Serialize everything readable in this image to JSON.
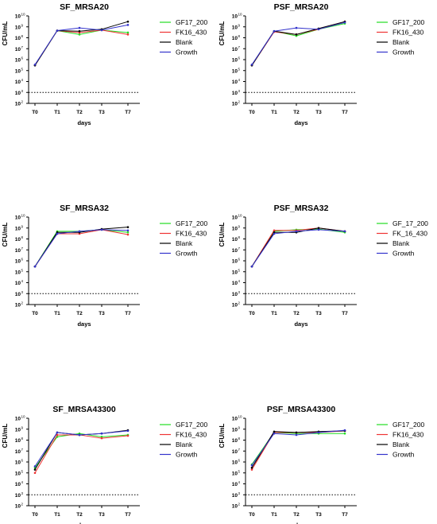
{
  "chart_data": [
    {
      "type": "line",
      "title": "SF_MRSA20",
      "ylabel": "CFU/mL",
      "xlabel": "days",
      "categories": [
        "T0",
        "T1",
        "T2",
        "T3",
        "T7"
      ],
      "y_scale": "log",
      "ylim": [
        100,
        10000000000
      ],
      "yticks": [
        "10",
        "10",
        "10",
        "10",
        "10",
        "10",
        "10",
        "10",
        "10"
      ],
      "ytick_exponents": [
        "2",
        "3",
        "4",
        "5",
        "6",
        "7",
        "8",
        "9",
        "10"
      ],
      "reference_line": 1000,
      "legend_position": "right",
      "series": [
        {
          "name": "GF17_200",
          "color": "#22dd22",
          "values": [
            300000,
            450000000,
            200000000,
            500000000,
            300000000
          ]
        },
        {
          "name": "FK16_430",
          "color": "#ee3333",
          "values": [
            300000,
            450000000,
            300000000,
            500000000,
            200000000
          ]
        },
        {
          "name": "Blank",
          "color": "#000000",
          "values": [
            300000,
            450000000,
            400000000,
            600000000,
            3000000000
          ]
        },
        {
          "name": "Growth",
          "color": "#3333cc",
          "values": [
            350000,
            450000000,
            800000000,
            500000000,
            1500000000
          ]
        }
      ]
    },
    {
      "type": "line",
      "title": "PSF_MRSA20",
      "ylabel": "CFU/mL",
      "xlabel": "days",
      "categories": [
        "T0",
        "T1",
        "T2",
        "T3",
        "T7"
      ],
      "y_scale": "log",
      "ylim": [
        100,
        10000000000
      ],
      "yticks": [
        "10",
        "10",
        "10",
        "10",
        "10",
        "10",
        "10",
        "10",
        "10"
      ],
      "ytick_exponents": [
        "2",
        "3",
        "4",
        "5",
        "6",
        "7",
        "8",
        "9",
        "10"
      ],
      "reference_line": 1000,
      "legend_position": "right",
      "series": [
        {
          "name": "GF17_200",
          "color": "#22dd22",
          "values": [
            300000,
            400000000,
            150000000,
            600000000,
            2000000000
          ]
        },
        {
          "name": "FK16_430",
          "color": "#ee3333",
          "values": [
            300000,
            350000000,
            200000000,
            600000000,
            3000000000
          ]
        },
        {
          "name": "Blank",
          "color": "#000000",
          "values": [
            300000,
            400000000,
            200000000,
            700000000,
            3000000000
          ]
        },
        {
          "name": "Growth",
          "color": "#3333cc",
          "values": [
            350000,
            400000000,
            800000000,
            600000000,
            2500000000
          ]
        }
      ]
    },
    {
      "type": "line",
      "title": "SF_MRSA32",
      "ylabel": "CFU/mL",
      "xlabel": "days",
      "categories": [
        "T0",
        "T1",
        "T2",
        "T3",
        "T7"
      ],
      "y_scale": "log",
      "ylim": [
        100,
        10000000000
      ],
      "yticks": [
        "10",
        "10",
        "10",
        "10",
        "10",
        "10",
        "10",
        "10",
        "10"
      ],
      "ytick_exponents": [
        "2",
        "3",
        "4",
        "5",
        "6",
        "7",
        "8",
        "9",
        "10"
      ],
      "reference_line": 1000,
      "legend_position": "right",
      "series": [
        {
          "name": "GF17_200",
          "color": "#22dd22",
          "values": [
            300000,
            500000000,
            500000000,
            700000000,
            400000000
          ]
        },
        {
          "name": "FK16_430",
          "color": "#ee3333",
          "values": [
            300000,
            300000000,
            300000000,
            700000000,
            250000000
          ]
        },
        {
          "name": "Blank",
          "color": "#000000",
          "values": [
            300000,
            400000000,
            400000000,
            800000000,
            1200000000
          ]
        },
        {
          "name": "Growth",
          "color": "#3333cc",
          "values": [
            300000,
            300000000,
            500000000,
            700000000,
            600000000
          ]
        }
      ]
    },
    {
      "type": "line",
      "title": "PSF_MRSA32",
      "ylabel": "CFU/mL",
      "xlabel": "days",
      "categories": [
        "T0",
        "T1",
        "T2",
        "T3",
        "T7"
      ],
      "y_scale": "log",
      "ylim": [
        100,
        10000000000
      ],
      "yticks": [
        "10",
        "10",
        "10",
        "10",
        "10",
        "10",
        "10",
        "10",
        "10"
      ],
      "ytick_exponents": [
        "2",
        "3",
        "4",
        "5",
        "6",
        "7",
        "8",
        "9",
        "10"
      ],
      "reference_line": 1000,
      "legend_position": "right",
      "series": [
        {
          "name": "GF_17_200",
          "color": "#22dd22",
          "values": [
            300000,
            500000000,
            700000000,
            800000000,
            400000000
          ]
        },
        {
          "name": "FK_16_430",
          "color": "#ee3333",
          "values": [
            300000,
            600000000,
            600000000,
            1000000000,
            500000000
          ]
        },
        {
          "name": "Blank",
          "color": "#000000",
          "values": [
            300000,
            400000000,
            400000000,
            1000000000,
            500000000
          ]
        },
        {
          "name": "Growth",
          "color": "#3333cc",
          "values": [
            300000,
            300000000,
            500000000,
            700000000,
            500000000
          ]
        }
      ]
    },
    {
      "type": "line",
      "title": "SF_MRSA43300",
      "ylabel": "CFU/mL",
      "xlabel": "days",
      "categories": [
        "T0",
        "T1",
        "T2",
        "T3",
        "T7"
      ],
      "y_scale": "log",
      "ylim": [
        100,
        10000000000
      ],
      "yticks": [
        "10",
        "10",
        "10",
        "10",
        "10",
        "10",
        "10",
        "10",
        "10"
      ],
      "ytick_exponents": [
        "2",
        "3",
        "4",
        "5",
        "6",
        "7",
        "8",
        "9",
        "10"
      ],
      "reference_line": 1000,
      "legend_position": "right",
      "series": [
        {
          "name": "GF17_200",
          "color": "#22dd22",
          "values": [
            300000,
            200000000,
            400000000,
            200000000,
            300000000
          ]
        },
        {
          "name": "FK16_430",
          "color": "#ee3333",
          "values": [
            100000,
            300000000,
            300000000,
            150000000,
            250000000
          ]
        },
        {
          "name": "Blank",
          "color": "#000000",
          "values": [
            200000,
            500000000,
            300000000,
            400000000,
            800000000
          ]
        },
        {
          "name": "Growth",
          "color": "#3333cc",
          "values": [
            400000,
            500000000,
            300000000,
            400000000,
            700000000
          ]
        }
      ]
    },
    {
      "type": "line",
      "title": "PSF_MRSA43300",
      "ylabel": "CFU/mL",
      "xlabel": "days",
      "categories": [
        "T0",
        "T1",
        "T2",
        "T3",
        "T7"
      ],
      "y_scale": "log",
      "ylim": [
        100,
        10000000000
      ],
      "yticks": [
        "10",
        "10",
        "10",
        "10",
        "10",
        "10",
        "10",
        "10",
        "10"
      ],
      "ytick_exponents": [
        "2",
        "3",
        "4",
        "5",
        "6",
        "7",
        "8",
        "9",
        "10"
      ],
      "reference_line": 1000,
      "legend_position": "right",
      "series": [
        {
          "name": "GF17_200",
          "color": "#22dd22",
          "values": [
            600000,
            500000000,
            400000000,
            400000000,
            400000000
          ]
        },
        {
          "name": "FK16_430",
          "color": "#ee3333",
          "values": [
            200000,
            500000000,
            500000000,
            500000000,
            700000000
          ]
        },
        {
          "name": "Blank",
          "color": "#000000",
          "values": [
            300000,
            600000000,
            500000000,
            600000000,
            700000000
          ]
        },
        {
          "name": "Growth",
          "color": "#3333cc",
          "values": [
            500000,
            400000000,
            300000000,
            500000000,
            800000000
          ]
        }
      ]
    }
  ]
}
